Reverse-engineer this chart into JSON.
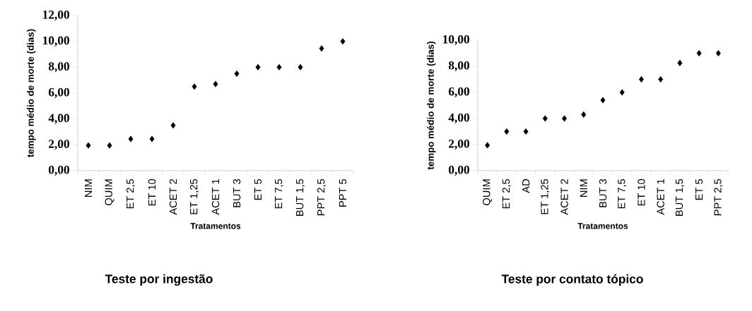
{
  "chart_data": [
    {
      "type": "scatter",
      "title": "Teste por ingestão",
      "xlabel": "Tratamentos",
      "ylabel": "tempo médio de morte (dias)",
      "categories": [
        "NIM",
        "QUIM",
        "ET 2,5",
        "ET 10",
        "ACET 2",
        "ET 1,25",
        "ACET 1",
        "BUT 3",
        "ET 5",
        "ET 7,5",
        "BUT 1,5",
        "PPT 2,5",
        "PPT 5"
      ],
      "values": [
        1.95,
        1.95,
        2.45,
        2.45,
        3.5,
        6.5,
        6.7,
        7.5,
        8,
        8,
        8,
        9.45,
        10
      ],
      "color": "#000000",
      "marker": "diamond",
      "grid": false,
      "ylim": [
        0,
        12
      ],
      "yticks": [
        {
          "value": 0,
          "label": "0,00"
        },
        {
          "value": 2,
          "label": "2,00"
        },
        {
          "value": 4,
          "label": "4,00"
        },
        {
          "value": 6,
          "label": "6,00"
        },
        {
          "value": 8,
          "label": "8,00"
        },
        {
          "value": 10,
          "label": "10,00"
        },
        {
          "value": 12,
          "label": "12,00"
        }
      ]
    },
    {
      "type": "scatter",
      "title": "Teste por contato tópico",
      "xlabel": "Tratamentos",
      "ylabel": "tempo médio de morte (dias)",
      "categories": [
        "QUIM",
        "ET 2,5",
        "AD",
        "ET 1,25",
        "ACET 2",
        "NIM",
        "BUT 3",
        "ET 7,5",
        "ET 10",
        "ACET 1",
        "BUT 1,5",
        "ET 5",
        "PPT 2,5"
      ],
      "values": [
        1.95,
        3,
        3,
        4,
        4,
        4.3,
        5.4,
        6,
        7,
        7,
        8.25,
        9,
        9
      ],
      "color": "#000000",
      "marker": "diamond",
      "grid": false,
      "ylim": [
        0,
        10
      ],
      "yticks": [
        {
          "value": 0,
          "label": "0,00"
        },
        {
          "value": 2,
          "label": "2,00"
        },
        {
          "value": 4,
          "label": "4,00"
        },
        {
          "value": 6,
          "label": "6,00"
        },
        {
          "value": 8,
          "label": "8,00"
        },
        {
          "value": 10,
          "label": "10,00"
        }
      ]
    }
  ]
}
